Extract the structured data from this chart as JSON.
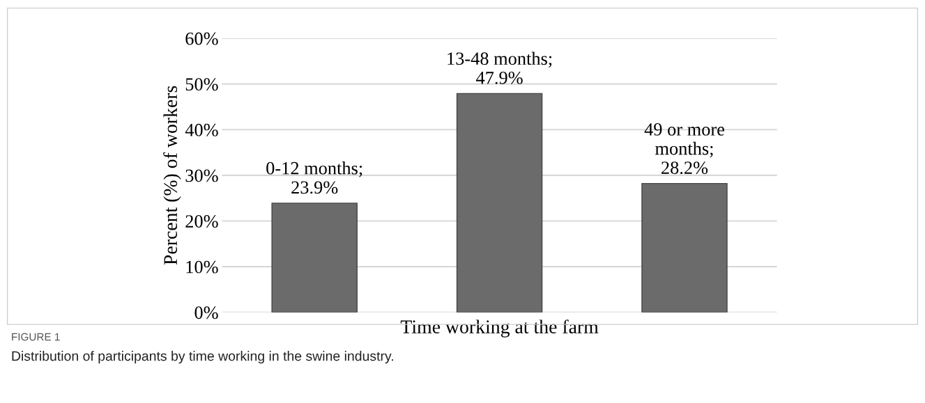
{
  "chart_data": {
    "type": "bar",
    "categories": [
      null,
      null,
      null
    ],
    "values": [
      23.9,
      47.9,
      28.2
    ],
    "value_labels": [
      "0-12 months;\n23.9%",
      "13-48 months;\n47.9%",
      "49 or more\nmonths;\n28.2%"
    ],
    "color": "#6b6b6b",
    "xlabel": "Time working at the farm",
    "ylabel": "Percent (%) of workers",
    "ylim": [
      0,
      60
    ],
    "yticks": [
      {
        "value": 0,
        "label": "0%"
      },
      {
        "value": 10,
        "label": "10%"
      },
      {
        "value": 20,
        "label": "20%"
      },
      {
        "value": 30,
        "label": "30%"
      },
      {
        "value": 40,
        "label": "40%"
      },
      {
        "value": 50,
        "label": "50%"
      },
      {
        "value": 60,
        "label": "60%"
      }
    ],
    "grid": "y",
    "annotations": [
      "FIGURE 1",
      "Distribution of participants by time working in the swine industry."
    ]
  }
}
